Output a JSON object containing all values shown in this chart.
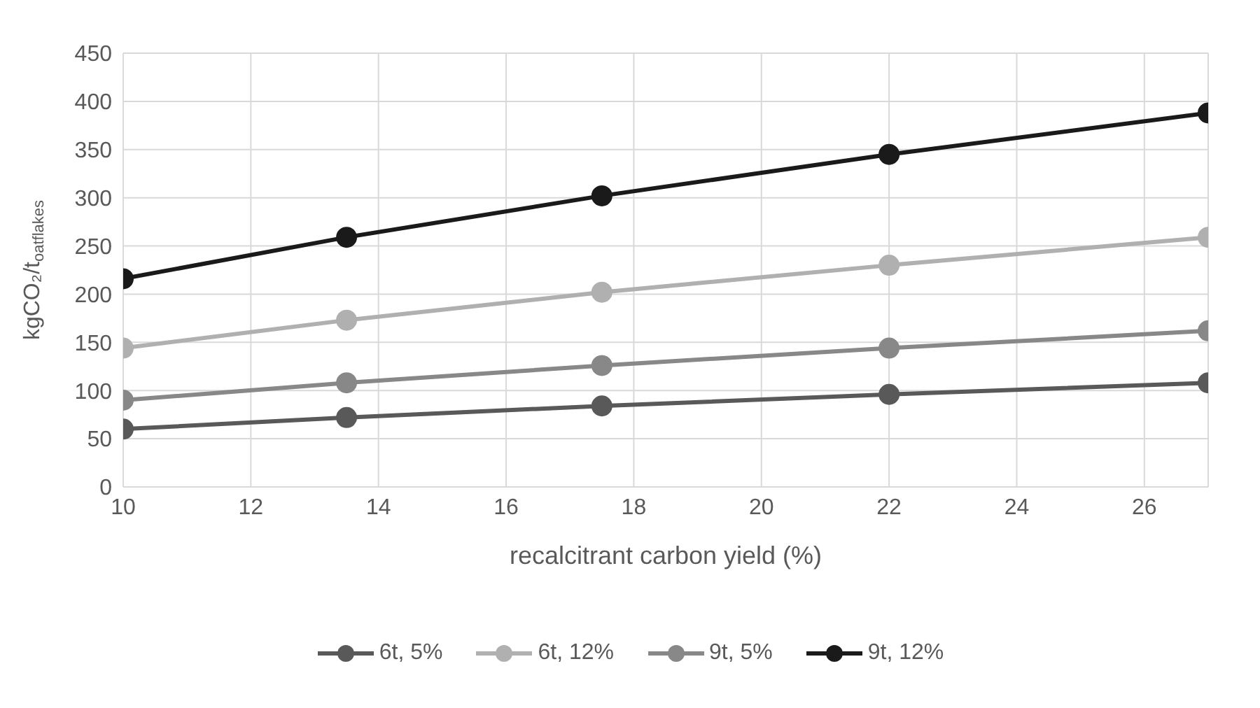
{
  "chart_data": {
    "type": "line",
    "xlabel": "recalcitrant carbon yield (%)",
    "ylabel": "kgCO₂/t$_{oatflakes}$",
    "x": [
      10,
      13.5,
      17.5,
      22,
      27
    ],
    "series": [
      {
        "name": "6t, 5%",
        "color": "#595959",
        "values": [
          60,
          72,
          84,
          96,
          108
        ]
      },
      {
        "name": "6t, 12%",
        "color": "#b0b0b0",
        "values": [
          144,
          173,
          202,
          230,
          259
        ]
      },
      {
        "name": "9t, 5%",
        "color": "#888888",
        "values": [
          90,
          108,
          126,
          144,
          162
        ]
      },
      {
        "name": "9t, 12%",
        "color": "#1a1a1a",
        "values": [
          216,
          259,
          302,
          345,
          388
        ]
      }
    ],
    "xlim": [
      10,
      27
    ],
    "xticks": [
      10,
      12,
      14,
      16,
      18,
      20,
      22,
      24,
      26
    ],
    "ylim": [
      0,
      450
    ],
    "yticks": [
      0,
      50,
      100,
      150,
      200,
      250,
      300,
      350,
      400,
      450
    ],
    "grid": true,
    "legend": "bottom",
    "marker": "circle",
    "line_style": "solid"
  }
}
